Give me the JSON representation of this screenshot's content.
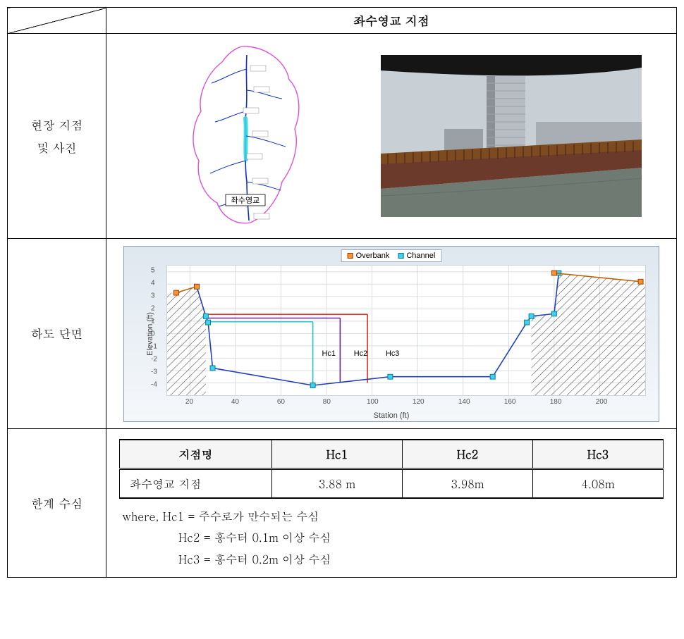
{
  "header": {
    "title": "좌수영교 지점"
  },
  "rows": {
    "r1_label": "현장 지점\n및 사진",
    "r2_label": "하도 단면",
    "r3_label": "한계 수심"
  },
  "map": {
    "marker_label": "좌수영교",
    "outline_color": "#e050d8",
    "river_color": "#1030c0",
    "highlight_color": "#30d8e0",
    "label_box_border": "#000000",
    "label_box_bg": "#ffffff",
    "label_fontsize": 11
  },
  "photo": {
    "sky_color": "#c8d0d6",
    "building_color": "#b7bdc2",
    "building_shadow": "#8a9096",
    "bridge_color": "#6b3a2a",
    "bridge_beam": "#7e4a20",
    "water_color": "#6f7a72",
    "dark_top": "#151515"
  },
  "chart": {
    "type": "cross-section",
    "legend": [
      {
        "label": "Overbank",
        "marker_fill": "#ff9030",
        "marker_border": "#a04000",
        "line_color": "#c06000"
      },
      {
        "label": "Channel",
        "marker_fill": "#40d0f0",
        "marker_border": "#008090",
        "line_color": "#2040c0"
      }
    ],
    "xlabel": "Station (ft)",
    "ylabel": "Elevation (ft)",
    "xlim": [
      10,
      220
    ],
    "ylim": [
      -5,
      5.5
    ],
    "xticks": [
      20,
      40,
      60,
      80,
      100,
      120,
      140,
      160,
      180,
      200
    ],
    "yticks": [
      -4,
      -3,
      -2,
      -1,
      0,
      1,
      2,
      3,
      4,
      5
    ],
    "grid_color": "#d8dde2",
    "plot_bg": "#ffffff",
    "frame_bg_top": "#dfe7ef",
    "frame_bg_bottom": "#f5f8fb",
    "hatch_color": "#505050",
    "overbank_points": [
      {
        "x": 14,
        "y": 3.3
      },
      {
        "x": 23,
        "y": 3.8
      },
      {
        "x": 180,
        "y": 4.9
      },
      {
        "x": 218,
        "y": 4.2
      }
    ],
    "channel_points": [
      {
        "x": 23,
        "y": 3.8
      },
      {
        "x": 27,
        "y": 1.4
      },
      {
        "x": 28,
        "y": 0.9
      },
      {
        "x": 30,
        "y": -2.8
      },
      {
        "x": 74,
        "y": -4.2
      },
      {
        "x": 108,
        "y": -3.5
      },
      {
        "x": 153,
        "y": -3.5
      },
      {
        "x": 168,
        "y": 0.9
      },
      {
        "x": 170,
        "y": 1.4
      },
      {
        "x": 180,
        "y": 1.6
      },
      {
        "x": 182,
        "y": 4.9
      }
    ],
    "hc_lines": [
      {
        "name": "Hc1",
        "color": "#20c8d0",
        "x_label": 78,
        "y": 0.95,
        "x1": 27,
        "x2": 74
      },
      {
        "name": "Hc2",
        "color": "#6a1ea0",
        "x_label": 92,
        "y": 1.25,
        "x1": 27,
        "x2": 86
      },
      {
        "name": "Hc3",
        "color": "#e03020",
        "x_label": 106,
        "y": 1.55,
        "x1": 27,
        "x2": 98
      }
    ],
    "hc_label_fontsize": 11,
    "line_width": 1.6,
    "marker_size": 7
  },
  "limit_table": {
    "columns": [
      "지점명",
      "Hc1",
      "Hc2",
      "Hc3"
    ],
    "row": {
      "name": "좌수영교 지점",
      "hc1": "3.88 m",
      "hc2": "3.98m",
      "hc3": "4.08m"
    },
    "header_bg": "#f5f5f5"
  },
  "where": {
    "prefix": "where,",
    "lines": [
      "Hc1 = 주수로가 만수되는 수심",
      "Hc2 = 홍수터 0.1m 이상 수심",
      "Hc3 = 홍수터 0.2m 이상 수심"
    ]
  }
}
